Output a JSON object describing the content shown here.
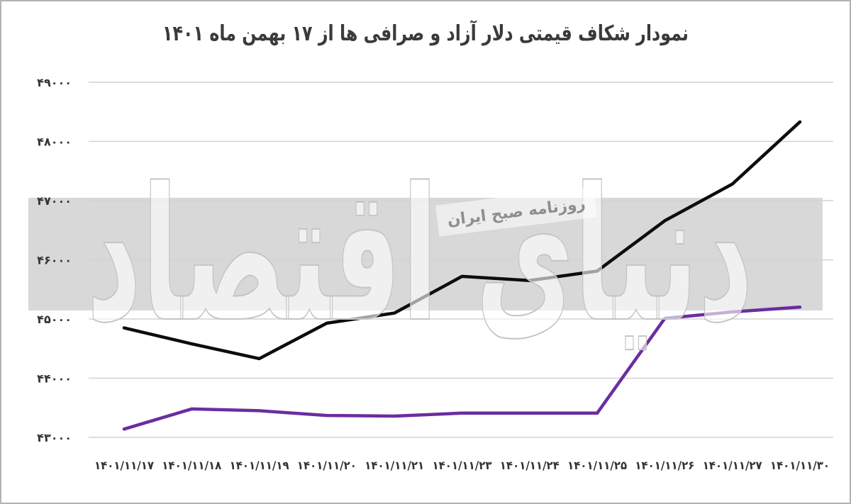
{
  "chart_data": {
    "type": "line",
    "title": "نمودار شکاف قیمتی دلار آزاد و صرافی ها از ۱۷ بهمن ماه ۱۴۰۱",
    "categories": [
      "۱۴۰۱/۱۱/۱۷",
      "۱۴۰۱/۱۱/۱۸",
      "۱۴۰۱/۱۱/۱۹",
      "۱۴۰۱/۱۱/۲۰",
      "۱۴۰۱/۱۱/۲۱",
      "۱۴۰۱/۱۱/۲۳",
      "۱۴۰۱/۱۱/۲۴",
      "۱۴۰۱/۱۱/۲۵",
      "۱۴۰۱/۱۱/۲۶",
      "۱۴۰۱/۱۱/۲۷",
      "۱۴۰۱/۱۱/۳۰"
    ],
    "series": [
      {
        "color": "#0d0d0d",
        "values": [
          44850,
          44580,
          44330,
          44930,
          45100,
          45720,
          45650,
          45810,
          46660,
          47280,
          48330
        ]
      },
      {
        "color": "#6a2da0",
        "values": [
          43140,
          43480,
          43450,
          43370,
          43360,
          43410,
          43410,
          43410,
          45010,
          45120,
          45200
        ]
      }
    ],
    "yticks": [
      {
        "value": 43000,
        "label": "۴۳۰۰۰"
      },
      {
        "value": 44000,
        "label": "۴۴۰۰۰"
      },
      {
        "value": 45000,
        "label": "۴۵۰۰۰"
      },
      {
        "value": 46000,
        "label": "۴۶۰۰۰"
      },
      {
        "value": 47000,
        "label": "۴۷۰۰۰"
      },
      {
        "value": 48000,
        "label": "۴۸۰۰۰"
      },
      {
        "value": 49000,
        "label": "۴۹۰۰۰"
      }
    ],
    "ylim": [
      43000,
      49000
    ],
    "grid": true,
    "legend": "none"
  },
  "watermark": {
    "logo_text": "دنیای اقتصاد",
    "caption": "روزنامه صبح ایران"
  }
}
